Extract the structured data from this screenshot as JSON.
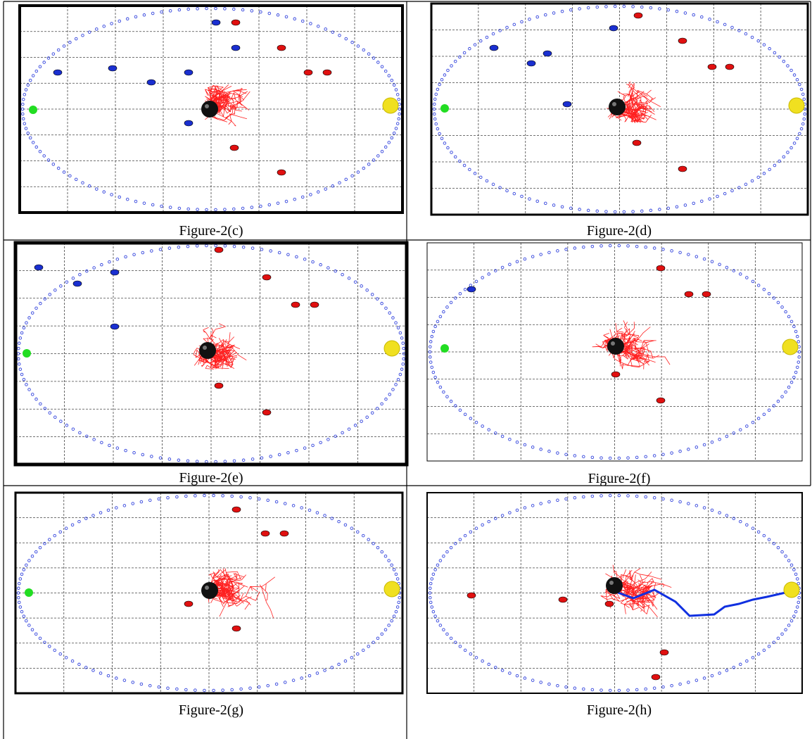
{
  "panels": [
    {
      "caption": "Figure-2(c)"
    },
    {
      "caption": "Figure-2(d)"
    },
    {
      "caption": "Figure-2(e)"
    },
    {
      "caption": "Figure-2(f)"
    },
    {
      "caption": "Figure-2(g)"
    },
    {
      "caption": "Figure-2(h)"
    }
  ]
}
